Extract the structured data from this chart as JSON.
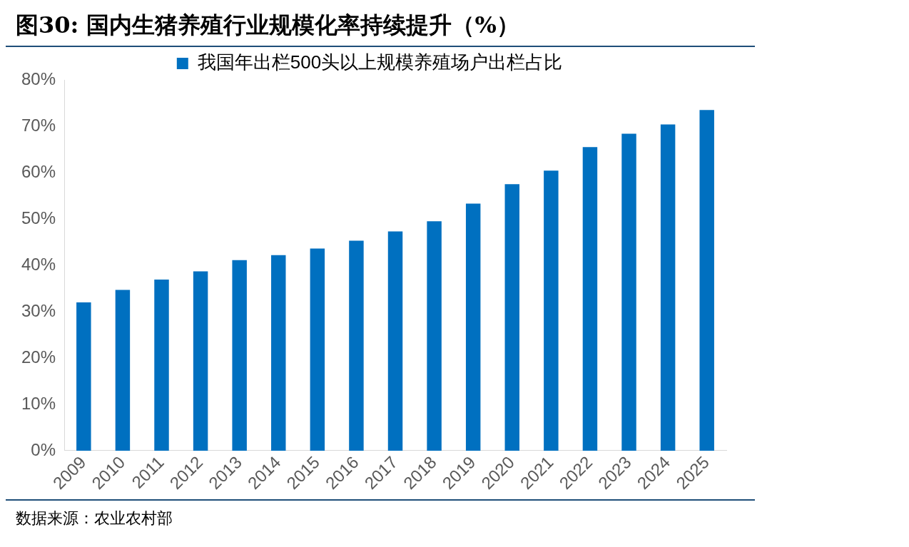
{
  "chart_data": {
    "type": "bar",
    "title": "图30: 国内生猪养殖行业规模化率持续提升（%）",
    "categories": [
      "2009",
      "2010",
      "2011",
      "2012",
      "2013",
      "2014",
      "2015",
      "2016",
      "2017",
      "2018",
      "2019",
      "2020",
      "2021",
      "2022",
      "2023",
      "2024",
      "2025"
    ],
    "series": [
      {
        "name": "我国年出栏500头以上规模养殖场户出栏占比",
        "color": "#0070c0",
        "values": [
          32.0,
          34.7,
          36.9,
          38.7,
          41.1,
          42.2,
          43.6,
          45.3,
          47.3,
          49.5,
          53.3,
          57.5,
          60.4,
          65.5,
          68.4,
          70.4,
          73.5
        ]
      }
    ],
    "ylim": [
      0,
      80
    ],
    "yticks": [
      {
        "value": 0,
        "label": "0%"
      },
      {
        "value": 10,
        "label": "10%"
      },
      {
        "value": 20,
        "label": "20%"
      },
      {
        "value": 30,
        "label": "30%"
      },
      {
        "value": 40,
        "label": "40%"
      },
      {
        "value": 50,
        "label": "50%"
      },
      {
        "value": 60,
        "label": "60%"
      },
      {
        "value": 70,
        "label": "70%"
      },
      {
        "value": 80,
        "label": "80%"
      }
    ],
    "grid": false,
    "legend": "top",
    "annotations": [
      "数据来源：农业农村部"
    ]
  }
}
